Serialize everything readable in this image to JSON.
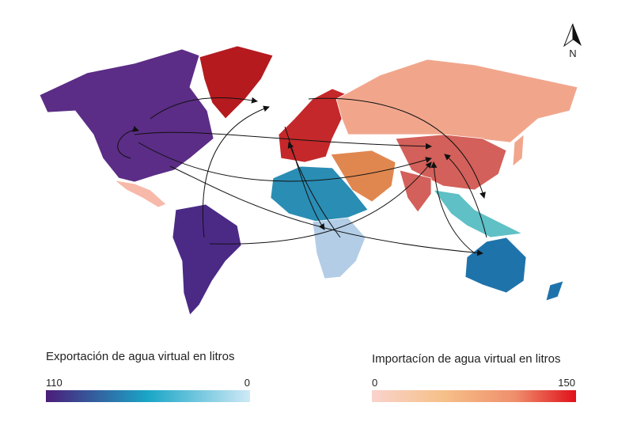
{
  "north_label": "N",
  "legends": [
    {
      "title": "Exportación de agua virtual en litros",
      "min_label": 110,
      "max_label": 0
    },
    {
      "title": "Importacíon de agua virtual en litros",
      "min_label": 0,
      "max_label": 150
    }
  ]
}
